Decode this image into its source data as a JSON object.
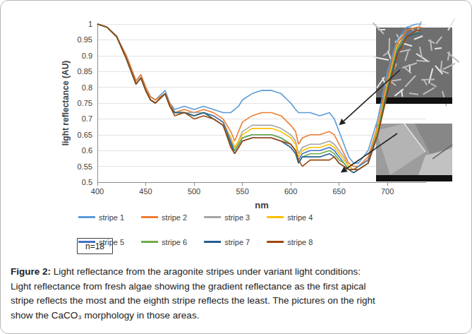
{
  "chart_data": {
    "type": "line",
    "xlabel": "nm",
    "ylabel": "light reflectance (AU)",
    "x": [
      400,
      410,
      420,
      430,
      440,
      445,
      450,
      455,
      460,
      470,
      475,
      480,
      490,
      500,
      510,
      520,
      530,
      538,
      542,
      546,
      550,
      560,
      570,
      580,
      590,
      600,
      605,
      608,
      612,
      620,
      630,
      640,
      645,
      650,
      655,
      660,
      665,
      670,
      680,
      690,
      700,
      710,
      720,
      730,
      735
    ],
    "series": [
      {
        "name": "stripe 1",
        "color": "#5b9bd5",
        "values": [
          1,
          0.99,
          0.96,
          0.9,
          0.82,
          0.84,
          0.8,
          0.77,
          0.76,
          0.79,
          0.75,
          0.73,
          0.74,
          0.73,
          0.74,
          0.73,
          0.72,
          0.72,
          0.73,
          0.74,
          0.76,
          0.78,
          0.79,
          0.79,
          0.78,
          0.75,
          0.73,
          0.72,
          0.72,
          0.72,
          0.71,
          0.72,
          0.7,
          0.66,
          0.62,
          0.58,
          0.56,
          0.56,
          0.6,
          0.7,
          0.85,
          0.95,
          0.99,
          1,
          1
        ]
      },
      {
        "name": "stripe 2",
        "color": "#ed7d31",
        "values": [
          1,
          0.99,
          0.96,
          0.9,
          0.82,
          0.84,
          0.8,
          0.77,
          0.76,
          0.78,
          0.75,
          0.72,
          0.73,
          0.72,
          0.73,
          0.72,
          0.7,
          0.66,
          0.63,
          0.66,
          0.69,
          0.71,
          0.72,
          0.72,
          0.71,
          0.68,
          0.66,
          0.62,
          0.64,
          0.65,
          0.65,
          0.66,
          0.65,
          0.62,
          0.59,
          0.56,
          0.55,
          0.55,
          0.58,
          0.68,
          0.83,
          0.94,
          0.98,
          0.99,
          0.99
        ]
      },
      {
        "name": "stripe 3",
        "color": "#a5a5a5",
        "values": [
          1,
          0.99,
          0.96,
          0.89,
          0.81,
          0.83,
          0.79,
          0.76,
          0.75,
          0.78,
          0.74,
          0.72,
          0.72,
          0.72,
          0.72,
          0.71,
          0.69,
          0.64,
          0.61,
          0.63,
          0.66,
          0.68,
          0.68,
          0.68,
          0.67,
          0.65,
          0.63,
          0.59,
          0.61,
          0.62,
          0.62,
          0.63,
          0.62,
          0.6,
          0.58,
          0.55,
          0.54,
          0.55,
          0.57,
          0.67,
          0.81,
          0.93,
          0.97,
          0.98,
          0.98
        ]
      },
      {
        "name": "stripe 4",
        "color": "#ffc000",
        "values": [
          1,
          0.99,
          0.96,
          0.89,
          0.81,
          0.83,
          0.79,
          0.76,
          0.75,
          0.78,
          0.74,
          0.72,
          0.72,
          0.71,
          0.72,
          0.71,
          0.69,
          0.64,
          0.61,
          0.63,
          0.65,
          0.67,
          0.67,
          0.67,
          0.66,
          0.64,
          0.62,
          0.58,
          0.6,
          0.61,
          0.61,
          0.62,
          0.61,
          0.59,
          0.57,
          0.55,
          0.54,
          0.55,
          0.57,
          0.67,
          0.81,
          0.93,
          0.97,
          0.98,
          0.98
        ]
      },
      {
        "name": "stripe 5",
        "color": "#4472c4",
        "values": [
          1,
          0.99,
          0.96,
          0.89,
          0.81,
          0.83,
          0.79,
          0.76,
          0.75,
          0.78,
          0.74,
          0.72,
          0.72,
          0.71,
          0.72,
          0.71,
          0.69,
          0.63,
          0.6,
          0.62,
          0.64,
          0.65,
          0.65,
          0.65,
          0.64,
          0.62,
          0.6,
          0.57,
          0.59,
          0.6,
          0.6,
          0.61,
          0.6,
          0.58,
          0.56,
          0.54,
          0.54,
          0.55,
          0.57,
          0.66,
          0.8,
          0.92,
          0.97,
          0.98,
          0.98
        ]
      },
      {
        "name": "stripe 6",
        "color": "#70ad47",
        "values": [
          1,
          0.99,
          0.96,
          0.89,
          0.81,
          0.83,
          0.79,
          0.76,
          0.75,
          0.78,
          0.74,
          0.72,
          0.72,
          0.71,
          0.72,
          0.7,
          0.68,
          0.62,
          0.6,
          0.62,
          0.64,
          0.65,
          0.65,
          0.65,
          0.64,
          0.62,
          0.6,
          0.56,
          0.58,
          0.59,
          0.59,
          0.6,
          0.59,
          0.57,
          0.56,
          0.54,
          0.53,
          0.54,
          0.56,
          0.66,
          0.8,
          0.92,
          0.96,
          0.97,
          0.97
        ]
      },
      {
        "name": "stripe 7",
        "color": "#255e91",
        "values": [
          1,
          0.99,
          0.96,
          0.89,
          0.81,
          0.83,
          0.79,
          0.76,
          0.75,
          0.78,
          0.74,
          0.72,
          0.72,
          0.71,
          0.72,
          0.7,
          0.68,
          0.62,
          0.59,
          0.61,
          0.63,
          0.64,
          0.64,
          0.64,
          0.63,
          0.61,
          0.59,
          0.56,
          0.58,
          0.58,
          0.58,
          0.59,
          0.58,
          0.56,
          0.55,
          0.54,
          0.53,
          0.54,
          0.56,
          0.65,
          0.79,
          0.91,
          0.96,
          0.97,
          0.97
        ]
      },
      {
        "name": "stripe 8",
        "color": "#9e480e",
        "values": [
          1,
          0.99,
          0.96,
          0.89,
          0.81,
          0.83,
          0.79,
          0.76,
          0.75,
          0.78,
          0.74,
          0.71,
          0.72,
          0.7,
          0.71,
          0.7,
          0.68,
          0.61,
          0.59,
          0.61,
          0.63,
          0.64,
          0.64,
          0.64,
          0.63,
          0.62,
          0.6,
          0.57,
          0.55,
          0.57,
          0.57,
          0.57,
          0.58,
          0.56,
          0.55,
          0.54,
          0.54,
          0.54,
          0.56,
          0.65,
          0.78,
          0.9,
          0.96,
          0.98,
          0.98
        ]
      }
    ],
    "xlim": [
      400,
      740
    ],
    "xticks": [
      400,
      450,
      500,
      550,
      600,
      650,
      700
    ],
    "ylim": [
      0.5,
      1
    ],
    "yticks": [
      0.5,
      0.55,
      0.6,
      0.65,
      0.7,
      0.75,
      0.8,
      0.85,
      0.9,
      0.95,
      1
    ],
    "grid": true,
    "legend": "bottom",
    "marker": "none",
    "line_style": "solid",
    "annotations": [
      "n=18"
    ]
  },
  "caption": {
    "label": "Figure 2:",
    "lines": [
      "Light reflectance from the aragonite stripes under variant light conditions:",
      "Light reflectance from fresh algae showing the gradient reflectance as the first apical",
      "stripe reflects the most and the eighth stripe reflects the least. The pictures on the right",
      "show the CaCO₃ morphology in those areas."
    ]
  }
}
